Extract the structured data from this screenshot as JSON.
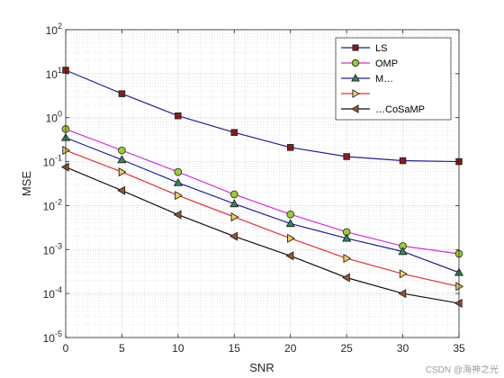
{
  "chart_data": {
    "type": "line",
    "title": "",
    "xlabel": "SNR",
    "ylabel": "MSE",
    "yscale": "log",
    "xlim": [
      0,
      35
    ],
    "ylim": [
      1e-05,
      100
    ],
    "x_ticks": [
      0,
      5,
      10,
      15,
      20,
      25,
      30,
      35
    ],
    "y_tick_labels": [
      {
        "base": "10",
        "exp": "2",
        "value": 100
      },
      {
        "base": "10",
        "exp": "1",
        "value": 10
      },
      {
        "base": "10",
        "exp": "0",
        "value": 1
      },
      {
        "base": "10",
        "exp": "-1",
        "value": 0.1
      },
      {
        "base": "10",
        "exp": "-2",
        "value": 0.01
      },
      {
        "base": "10",
        "exp": "-3",
        "value": 0.001
      },
      {
        "base": "10",
        "exp": "-4",
        "value": 0.0001
      },
      {
        "base": "10",
        "exp": "-5",
        "value": 1e-05
      }
    ],
    "grid": "major and minor, dotted",
    "legend_position": "top-right",
    "x": [
      0,
      5,
      10,
      15,
      20,
      25,
      30,
      35
    ],
    "series": [
      {
        "name": "LS",
        "color": "#1f1f8f",
        "marker": "square",
        "marker_fill": "#8b1a1a",
        "values": [
          12,
          3.5,
          1.1,
          0.46,
          0.21,
          0.13,
          0.105,
          0.1
        ]
      },
      {
        "name": "OMP",
        "color": "#d42fd4",
        "marker": "circle",
        "marker_fill": "#9acd32",
        "values": [
          0.55,
          0.18,
          0.058,
          0.018,
          0.0063,
          0.0025,
          0.0012,
          0.0008
        ]
      },
      {
        "name": "M…",
        "color": "#1f1f8f",
        "marker": "triangle-up",
        "marker_fill": "#2e8b57",
        "values": [
          0.35,
          0.11,
          0.033,
          0.011,
          0.0039,
          0.0018,
          0.0009,
          0.0003
        ]
      },
      {
        "name": "",
        "color": "#e03030",
        "marker": "triangle-right",
        "marker_fill": "#f0d060",
        "values": [
          0.18,
          0.058,
          0.017,
          0.0055,
          0.0018,
          0.00063,
          0.00028,
          0.000145
        ]
      },
      {
        "name": "…CoSaMP",
        "color": "#111111",
        "marker": "triangle-left",
        "marker_fill": "#a0522d",
        "values": [
          0.075,
          0.022,
          0.0062,
          0.002,
          0.00072,
          0.00023,
          0.0001,
          6e-05
        ]
      }
    ]
  },
  "watermark": "CSDN @海神之光"
}
